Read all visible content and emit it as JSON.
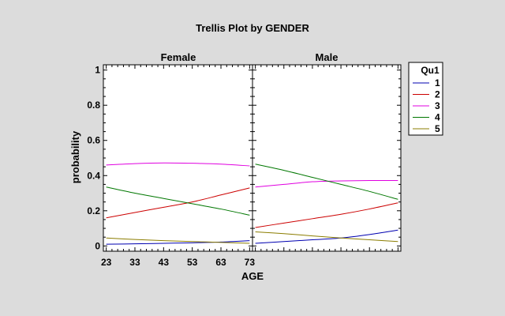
{
  "chart_data": {
    "type": "line",
    "title": "Trellis Plot by GENDER",
    "xlabel": "AGE",
    "ylabel": "probability",
    "xlim": [
      22,
      74
    ],
    "ylim": [
      -0.03,
      1.03
    ],
    "x_ticks": [
      23,
      33,
      43,
      53,
      63,
      73
    ],
    "x_tick_labels": [
      "23",
      "33",
      "43",
      "53",
      "63",
      "73"
    ],
    "y_ticks": [
      0,
      0.2,
      0.4,
      0.6,
      0.8,
      1
    ],
    "y_tick_labels": [
      "0",
      "0.2",
      "0.4",
      "0.6",
      "0.8",
      "1"
    ],
    "legend": {
      "title": "Qu1",
      "position": "right",
      "entries": [
        {
          "name": "1",
          "color": "#0000b0"
        },
        {
          "name": "2",
          "color": "#cc0000"
        },
        {
          "name": "3",
          "color": "#e000e0"
        },
        {
          "name": "4",
          "color": "#007700"
        },
        {
          "name": "5",
          "color": "#8b7d00"
        }
      ]
    },
    "panels": [
      {
        "title": "Female",
        "x": [
          23,
          33,
          43,
          53,
          63,
          73
        ],
        "series": [
          {
            "name": "1",
            "values": [
              0.01,
              0.012,
              0.015,
              0.018,
              0.022,
              0.03
            ]
          },
          {
            "name": "2",
            "values": [
              0.16,
              0.19,
              0.22,
              0.25,
              0.29,
              0.33
            ]
          },
          {
            "name": "3",
            "values": [
              0.46,
              0.468,
              0.472,
              0.47,
              0.465,
              0.455
            ]
          },
          {
            "name": "4",
            "values": [
              0.335,
              0.3,
              0.27,
              0.24,
              0.21,
              0.175
            ]
          },
          {
            "name": "5",
            "values": [
              0.045,
              0.037,
              0.03,
              0.025,
              0.02,
              0.015
            ]
          }
        ]
      },
      {
        "title": "Male",
        "x": [
          23,
          33,
          43,
          53,
          63,
          73
        ],
        "series": [
          {
            "name": "1",
            "values": [
              0.015,
              0.025,
              0.035,
              0.045,
              0.065,
              0.09
            ]
          },
          {
            "name": "2",
            "values": [
              0.105,
              0.13,
              0.155,
              0.18,
              0.21,
              0.245
            ]
          },
          {
            "name": "3",
            "values": [
              0.335,
              0.35,
              0.365,
              0.37,
              0.372,
              0.372
            ]
          },
          {
            "name": "4",
            "values": [
              0.465,
              0.43,
              0.39,
              0.35,
              0.31,
              0.265
            ]
          },
          {
            "name": "5",
            "values": [
              0.08,
              0.07,
              0.057,
              0.045,
              0.035,
              0.025
            ]
          }
        ]
      }
    ]
  }
}
